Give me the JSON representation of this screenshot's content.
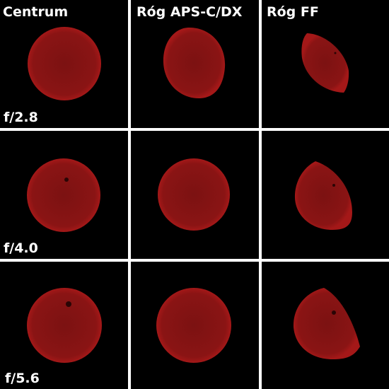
{
  "columns": [
    "Centrum",
    "Róg APS-C/DX",
    "Róg FF"
  ],
  "rows": [
    "f/2.8",
    "f/4.0",
    "f/5.6"
  ]
}
